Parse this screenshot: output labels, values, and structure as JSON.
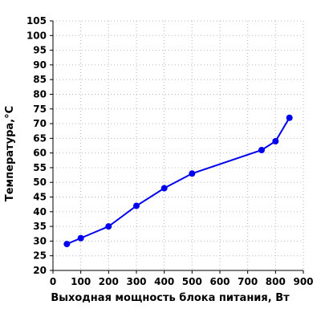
{
  "chart_data": {
    "type": "line",
    "title": "",
    "xlabel": "Выходная мощность блока питания, Вт",
    "ylabel": "Температура,°С",
    "xlim": [
      0,
      900
    ],
    "ylim": [
      20,
      105
    ],
    "x_ticks": [
      0,
      100,
      200,
      300,
      400,
      500,
      600,
      700,
      800,
      900
    ],
    "y_ticks": [
      20,
      25,
      30,
      35,
      40,
      45,
      50,
      55,
      60,
      65,
      70,
      75,
      80,
      85,
      90,
      95,
      100,
      105
    ],
    "grid": true,
    "series": [
      {
        "x": [
          50,
          100,
          200,
          300,
          400,
          500,
          750,
          800,
          850
        ],
        "values": [
          29,
          31,
          35,
          42,
          48,
          53,
          61,
          64,
          72
        ],
        "color": "#0000ee"
      }
    ]
  }
}
